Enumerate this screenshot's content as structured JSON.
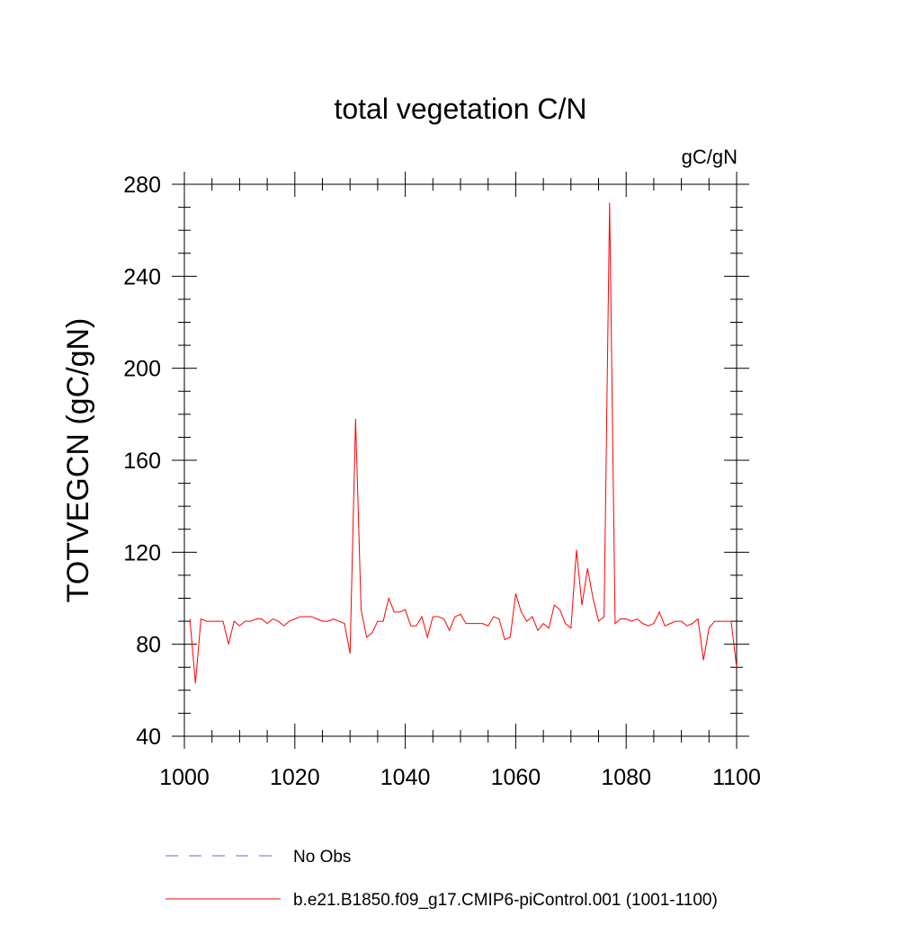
{
  "chart_data": {
    "type": "line",
    "title": "total vegetation C/N",
    "units": "gC/gN",
    "xlabel": "",
    "ylabel": "TOTVEGCN  (gC/gN)",
    "xlim": [
      1000,
      1100
    ],
    "ylim": [
      40,
      280
    ],
    "x_ticks": [
      "1000",
      "1020",
      "1040",
      "1060",
      "1080",
      "1100"
    ],
    "y_ticks": [
      "40",
      "80",
      "120",
      "160",
      "200",
      "240",
      "280"
    ],
    "grid": false,
    "legend_position": "bottom",
    "series": [
      {
        "name": "No Obs",
        "color": "#6a6ad0",
        "dash": "dashed",
        "x": [],
        "values": []
      },
      {
        "name": "b.e21.B1850.f09_g17.CMIP6-piControl.001 (1001-1100)",
        "color": "#ff0000",
        "dash": "solid",
        "x": [
          1001,
          1002,
          1003,
          1004,
          1005,
          1006,
          1007,
          1008,
          1009,
          1010,
          1011,
          1012,
          1013,
          1014,
          1015,
          1016,
          1017,
          1018,
          1019,
          1020,
          1021,
          1022,
          1023,
          1024,
          1025,
          1026,
          1027,
          1028,
          1029,
          1030,
          1031,
          1032,
          1033,
          1034,
          1035,
          1036,
          1037,
          1038,
          1039,
          1040,
          1041,
          1042,
          1043,
          1044,
          1045,
          1046,
          1047,
          1048,
          1049,
          1050,
          1051,
          1052,
          1053,
          1054,
          1055,
          1056,
          1057,
          1058,
          1059,
          1060,
          1061,
          1062,
          1063,
          1064,
          1065,
          1066,
          1067,
          1068,
          1069,
          1070,
          1071,
          1072,
          1073,
          1074,
          1075,
          1076,
          1077,
          1078,
          1079,
          1080,
          1081,
          1082,
          1083,
          1084,
          1085,
          1086,
          1087,
          1088,
          1089,
          1090,
          1091,
          1092,
          1093,
          1094,
          1095,
          1096,
          1097,
          1098,
          1099,
          1100
        ],
        "values": [
          91,
          63,
          91,
          90,
          90,
          90,
          90,
          80,
          90,
          88,
          90,
          90,
          91,
          91,
          89,
          91,
          90,
          88,
          90,
          91,
          92,
          92,
          92,
          91,
          90,
          90,
          91,
          90,
          89,
          76,
          178,
          95,
          83,
          85,
          90,
          90,
          100,
          94,
          94,
          95,
          88,
          88,
          92,
          83,
          92,
          92,
          91,
          86,
          92,
          93,
          89,
          89,
          89,
          89,
          88,
          92,
          91,
          82,
          83,
          102,
          94,
          90,
          92,
          86,
          89,
          87,
          97,
          95,
          89,
          87,
          121,
          97,
          113,
          100,
          90,
          92,
          272,
          89,
          91,
          91,
          90,
          91,
          89,
          88,
          89,
          94,
          88,
          89,
          90,
          90,
          88,
          89,
          91,
          73,
          87,
          90,
          90,
          90,
          90,
          70
        ]
      }
    ]
  }
}
